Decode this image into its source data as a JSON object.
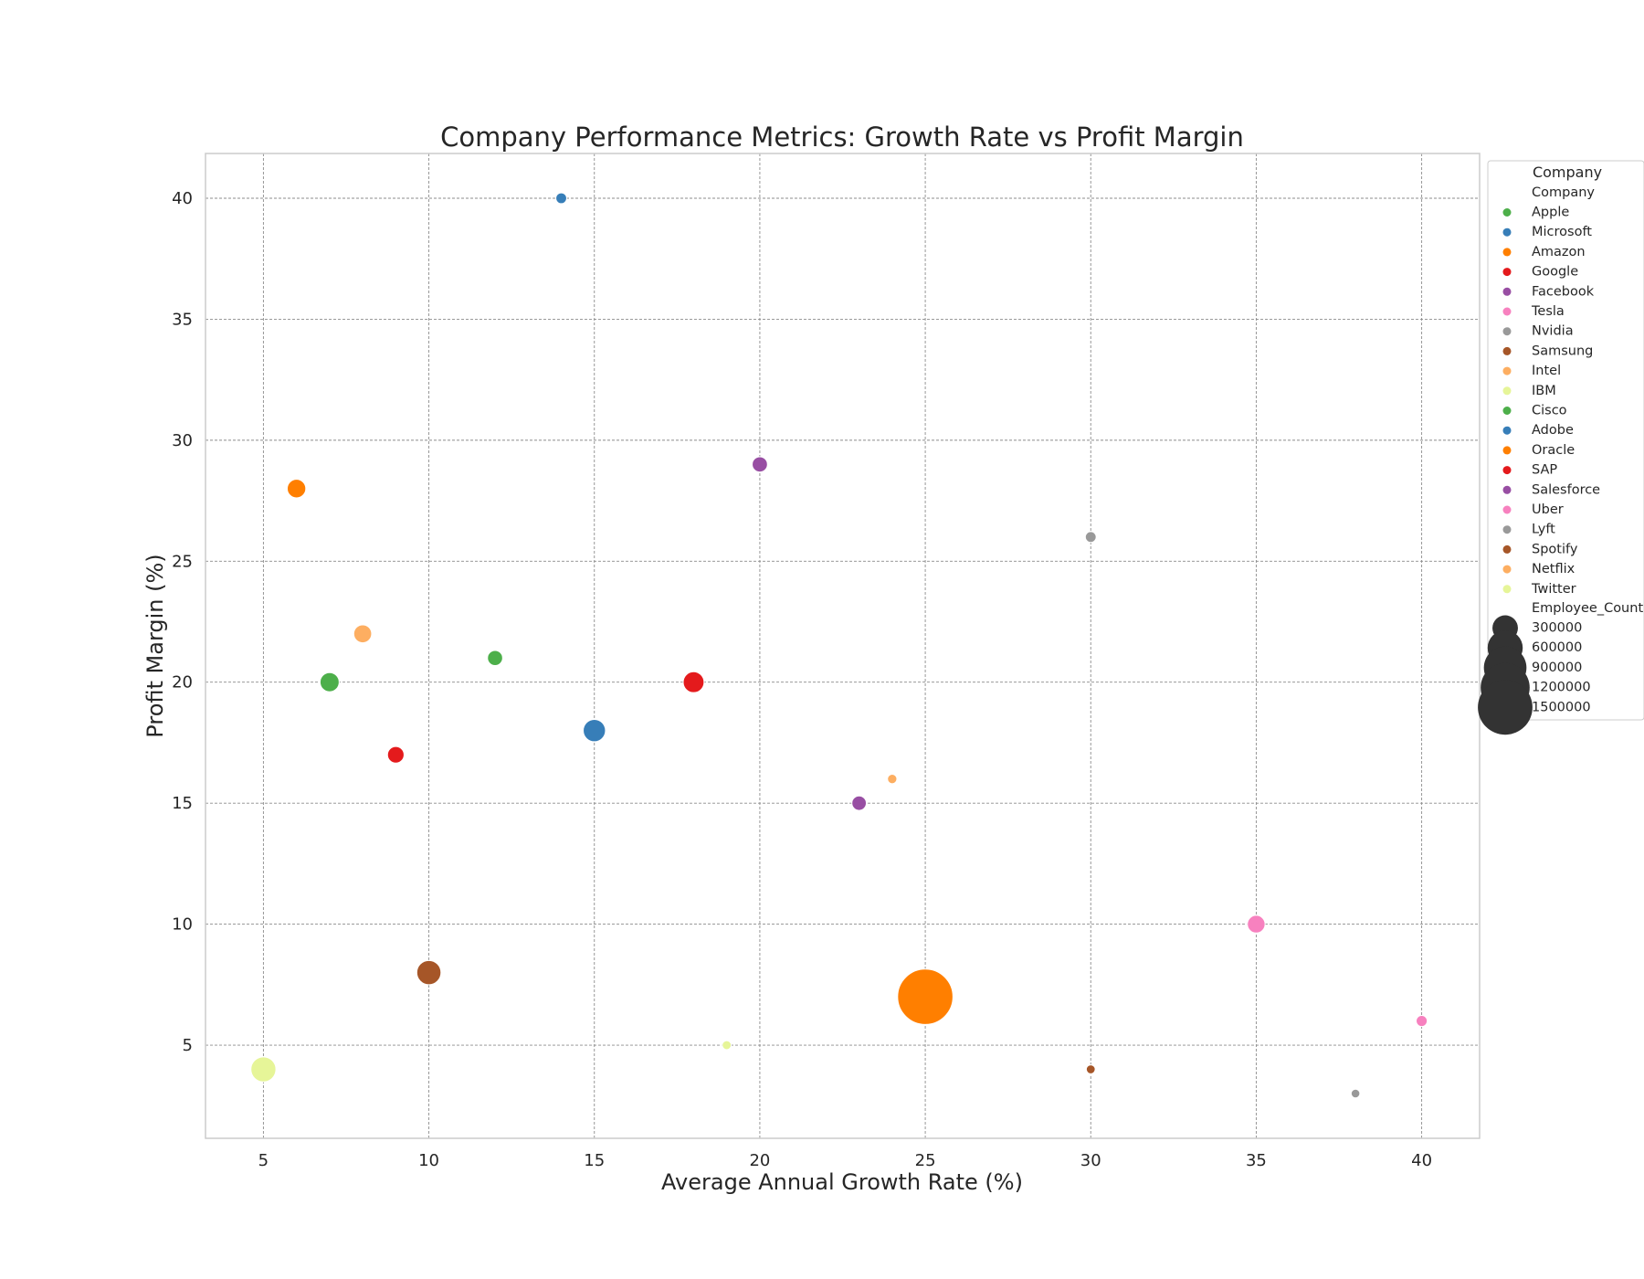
{
  "chart_data": {
    "type": "scatter",
    "title": "Company Performance Metrics: Growth Rate vs Profit Margin",
    "xlabel": "Average Annual Growth Rate (%)",
    "ylabel": "Profit Margin (%)",
    "xlim": [
      3.25,
      41.75
    ],
    "ylim": [
      1.15,
      41.85
    ],
    "xticks": [
      5,
      10,
      15,
      20,
      25,
      30,
      35,
      40
    ],
    "yticks": [
      5,
      10,
      15,
      20,
      25,
      30,
      35,
      40
    ],
    "grid": true,
    "legend": {
      "title": "Company",
      "placement": "outside-right",
      "hue_title": "Company",
      "size_title": "Employee_Count",
      "size_entries": [
        300000,
        600000,
        900000,
        1200000,
        1500000
      ]
    },
    "series": [
      {
        "name": "Apple",
        "color": "#4daf4a",
        "points": [
          {
            "x": 7,
            "y": 20,
            "size": 154000
          }
        ]
      },
      {
        "name": "Microsoft",
        "color": "#377eb8",
        "points": [
          {
            "x": 15,
            "y": 18,
            "size": 221000
          }
        ]
      },
      {
        "name": "Amazon",
        "color": "#ff7f00",
        "points": [
          {
            "x": 25,
            "y": 7,
            "size": 1540000
          }
        ]
      },
      {
        "name": "Google",
        "color": "#e41a1c",
        "points": [
          {
            "x": 18,
            "y": 20,
            "size": 190000
          }
        ]
      },
      {
        "name": "Facebook",
        "color": "#984ea3",
        "points": [
          {
            "x": 20,
            "y": 29,
            "size": 86000
          }
        ]
      },
      {
        "name": "Tesla",
        "color": "#f781bf",
        "points": [
          {
            "x": 35,
            "y": 10,
            "size": 127000
          }
        ]
      },
      {
        "name": "Nvidia",
        "color": "#999999",
        "points": [
          {
            "x": 30,
            "y": 26,
            "size": 26000
          }
        ]
      },
      {
        "name": "Samsung",
        "color": "#a65628",
        "points": [
          {
            "x": 10,
            "y": 8,
            "size": 267000
          }
        ]
      },
      {
        "name": "Intel",
        "color": "#fdae61",
        "points": [
          {
            "x": 8,
            "y": 22,
            "size": 131000
          }
        ]
      },
      {
        "name": "IBM",
        "color": "#e6f598",
        "points": [
          {
            "x": 5,
            "y": 4,
            "size": 288000
          }
        ]
      },
      {
        "name": "Cisco",
        "color": "#4daf4a",
        "points": [
          {
            "x": 12,
            "y": 21,
            "size": 84000
          }
        ]
      },
      {
        "name": "Adobe",
        "color": "#377eb8",
        "points": [
          {
            "x": 14,
            "y": 40,
            "size": 26000
          }
        ]
      },
      {
        "name": "Oracle",
        "color": "#ff7f00",
        "points": [
          {
            "x": 6,
            "y": 28,
            "size": 143000
          }
        ]
      },
      {
        "name": "SAP",
        "color": "#e41a1c",
        "points": [
          {
            "x": 9,
            "y": 17,
            "size": 107000
          }
        ]
      },
      {
        "name": "Salesforce",
        "color": "#984ea3",
        "points": [
          {
            "x": 23,
            "y": 15,
            "size": 73000
          }
        ]
      },
      {
        "name": "Uber",
        "color": "#f781bf",
        "points": [
          {
            "x": 40,
            "y": 6,
            "size": 29000
          }
        ]
      },
      {
        "name": "Lyft",
        "color": "#999999",
        "points": [
          {
            "x": 38,
            "y": 3,
            "size": 5000
          }
        ]
      },
      {
        "name": "Spotify",
        "color": "#a65628",
        "points": [
          {
            "x": 30,
            "y": 4,
            "size": 6500
          }
        ]
      },
      {
        "name": "Netflix",
        "color": "#fdae61",
        "points": [
          {
            "x": 24,
            "y": 16,
            "size": 11000
          }
        ]
      },
      {
        "name": "Twitter",
        "color": "#e6f598",
        "points": [
          {
            "x": 19,
            "y": 5,
            "size": 7500
          }
        ]
      }
    ]
  }
}
